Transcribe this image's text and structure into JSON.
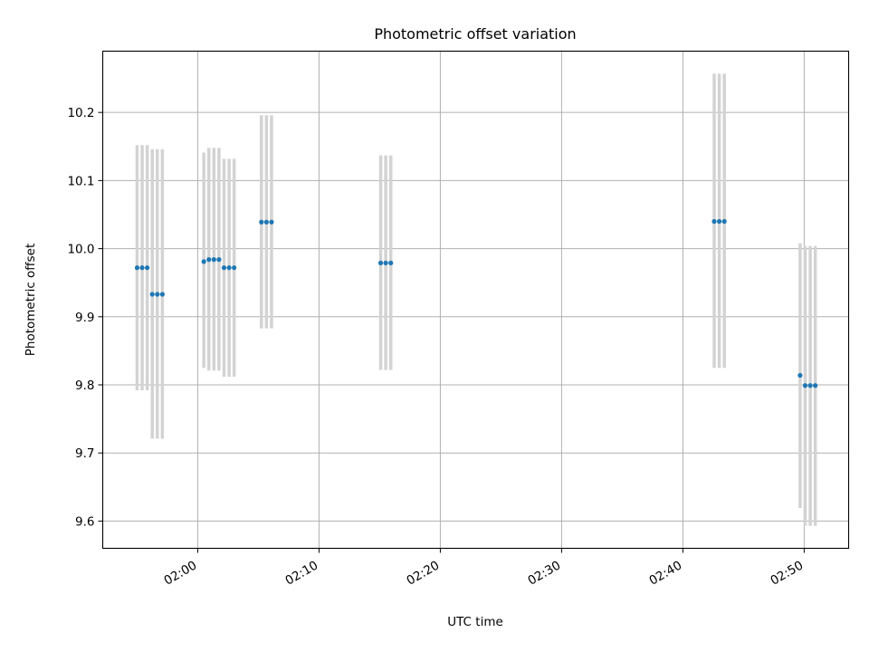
{
  "chart_data": {
    "type": "scatter",
    "title": "Photometric offset variation",
    "xlabel": "UTC time",
    "ylabel": "Photometric offset",
    "x_unit": "time-of-day",
    "xlim": [
      "01:52:10",
      "02:53:40"
    ],
    "ylim": [
      9.56,
      10.29
    ],
    "x_ticks": [
      "02:00",
      "02:10",
      "02:20",
      "02:30",
      "02:40",
      "02:50"
    ],
    "y_ticks": [
      9.6,
      9.7,
      9.8,
      9.9,
      10.0,
      10.1,
      10.2
    ],
    "grid": true,
    "point_color": "#1f77b4",
    "errorbar_color": "#d3d3d3",
    "points": [
      {
        "t": "01:55:00",
        "y": 9.972,
        "lo": 9.792,
        "hi": 10.152
      },
      {
        "t": "01:55:25",
        "y": 9.972,
        "lo": 9.792,
        "hi": 10.152
      },
      {
        "t": "01:55:50",
        "y": 9.972,
        "lo": 9.792,
        "hi": 10.152
      },
      {
        "t": "01:56:15",
        "y": 9.933,
        "lo": 9.721,
        "hi": 10.146
      },
      {
        "t": "01:56:40",
        "y": 9.933,
        "lo": 9.721,
        "hi": 10.146
      },
      {
        "t": "01:57:05",
        "y": 9.933,
        "lo": 9.721,
        "hi": 10.146
      },
      {
        "t": "02:00:30",
        "y": 9.981,
        "lo": 9.825,
        "hi": 10.141
      },
      {
        "t": "02:00:55",
        "y": 9.984,
        "lo": 9.821,
        "hi": 10.148
      },
      {
        "t": "02:01:20",
        "y": 9.984,
        "lo": 9.821,
        "hi": 10.148
      },
      {
        "t": "02:01:45",
        "y": 9.984,
        "lo": 9.821,
        "hi": 10.148
      },
      {
        "t": "02:02:10",
        "y": 9.972,
        "lo": 9.812,
        "hi": 10.132
      },
      {
        "t": "02:02:35",
        "y": 9.972,
        "lo": 9.812,
        "hi": 10.132
      },
      {
        "t": "02:03:00",
        "y": 9.972,
        "lo": 9.812,
        "hi": 10.132
      },
      {
        "t": "02:05:15",
        "y": 10.039,
        "lo": 9.883,
        "hi": 10.196
      },
      {
        "t": "02:05:40",
        "y": 10.039,
        "lo": 9.883,
        "hi": 10.196
      },
      {
        "t": "02:06:05",
        "y": 10.039,
        "lo": 9.883,
        "hi": 10.196
      },
      {
        "t": "02:15:05",
        "y": 9.979,
        "lo": 9.822,
        "hi": 10.137
      },
      {
        "t": "02:15:30",
        "y": 9.979,
        "lo": 9.822,
        "hi": 10.137
      },
      {
        "t": "02:15:55",
        "y": 9.979,
        "lo": 9.822,
        "hi": 10.137
      },
      {
        "t": "02:42:35",
        "y": 10.04,
        "lo": 9.825,
        "hi": 10.257
      },
      {
        "t": "02:43:00",
        "y": 10.04,
        "lo": 9.825,
        "hi": 10.257
      },
      {
        "t": "02:43:25",
        "y": 10.04,
        "lo": 9.825,
        "hi": 10.257
      },
      {
        "t": "02:49:40",
        "y": 9.814,
        "lo": 9.619,
        "hi": 10.008
      },
      {
        "t": "02:50:05",
        "y": 9.799,
        "lo": 9.593,
        "hi": 10.004
      },
      {
        "t": "02:50:30",
        "y": 9.799,
        "lo": 9.593,
        "hi": 10.004
      },
      {
        "t": "02:50:55",
        "y": 9.799,
        "lo": 9.593,
        "hi": 10.004
      }
    ]
  }
}
